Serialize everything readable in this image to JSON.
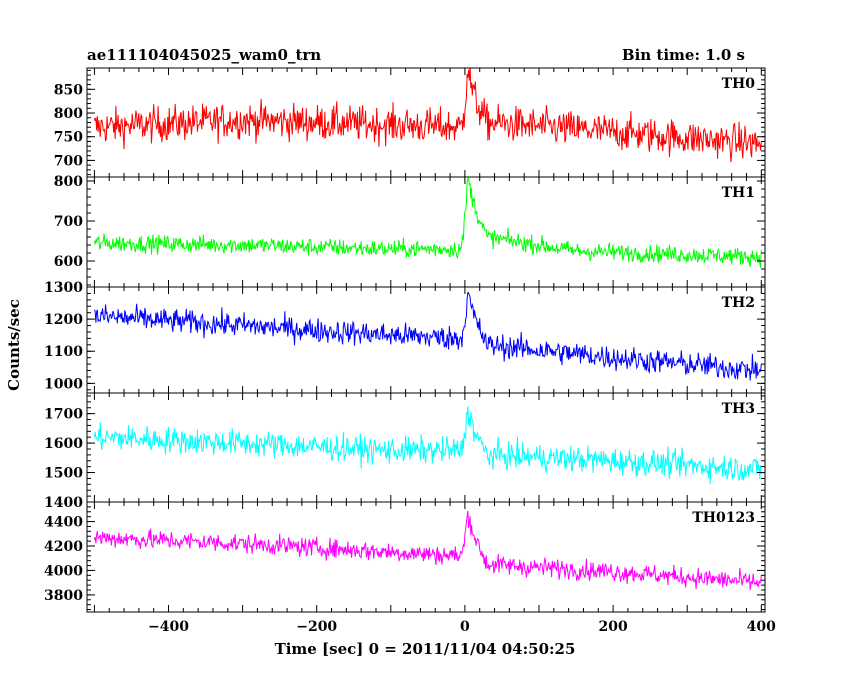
{
  "chart_data": {
    "type": "line",
    "title": "ae111104045025_wam0_trn",
    "bin_time_label": "Bin time: 1.0 s",
    "xlabel": "Time [sec] 0 = 2011/11/04 04:50:25",
    "ylabel": "Counts/sec",
    "xlim": [
      -510,
      405
    ],
    "x_ticks": [
      -400,
      -200,
      0,
      200,
      400
    ],
    "panels": [
      {
        "name": "TH0",
        "color": "#ff0000",
        "ylim": [
          665,
          895
        ],
        "y_ticks": [
          700,
          750,
          800,
          850
        ],
        "trend": [
          [
            -500,
            770
          ],
          [
            -300,
            785
          ],
          [
            -100,
            775
          ],
          [
            -5,
            770
          ],
          [
            5,
            840
          ],
          [
            30,
            780
          ],
          [
            200,
            760
          ],
          [
            400,
            735
          ]
        ],
        "noise": 38,
        "spike": {
          "x": 3,
          "amp": 70
        }
      },
      {
        "name": "TH1",
        "color": "#00ff00",
        "ylim": [
          535,
          810
        ],
        "y_ticks": [
          600,
          700,
          800
        ],
        "trend": [
          [
            -500,
            645
          ],
          [
            -300,
            640
          ],
          [
            -100,
            630
          ],
          [
            -5,
            630
          ],
          [
            5,
            760
          ],
          [
            30,
            660
          ],
          [
            150,
            625
          ],
          [
            400,
            610
          ]
        ],
        "noise": 22,
        "spike": {
          "x": 3,
          "amp": 60
        }
      },
      {
        "name": "TH2",
        "color": "#0000ff",
        "ylim": [
          970,
          1300
        ],
        "y_ticks": [
          1000,
          1100,
          1200,
          1300
        ],
        "trend": [
          [
            -500,
            1210
          ],
          [
            -300,
            1180
          ],
          [
            -100,
            1150
          ],
          [
            -5,
            1140
          ],
          [
            5,
            1230
          ],
          [
            30,
            1120
          ],
          [
            200,
            1080
          ],
          [
            400,
            1040
          ]
        ],
        "noise": 38,
        "spike": {
          "x": 3,
          "amp": 60
        }
      },
      {
        "name": "TH3",
        "color": "#00ffff",
        "ylim": [
          1400,
          1770
        ],
        "y_ticks": [
          1400,
          1500,
          1600,
          1700
        ],
        "trend": [
          [
            -500,
            1620
          ],
          [
            -300,
            1600
          ],
          [
            -100,
            1575
          ],
          [
            -5,
            1575
          ],
          [
            5,
            1660
          ],
          [
            30,
            1560
          ],
          [
            200,
            1540
          ],
          [
            400,
            1510
          ]
        ],
        "noise": 45,
        "spike": {
          "x": 3,
          "amp": 70
        }
      },
      {
        "name": "TH0123",
        "color": "#ff00ff",
        "ylim": [
          3660,
          4560
        ],
        "y_ticks": [
          3800,
          4000,
          4200,
          4400
        ],
        "trend": [
          [
            -500,
            4270
          ],
          [
            -300,
            4220
          ],
          [
            -100,
            4150
          ],
          [
            -5,
            4120
          ],
          [
            5,
            4350
          ],
          [
            30,
            4050
          ],
          [
            200,
            3990
          ],
          [
            400,
            3900
          ]
        ],
        "noise": 80,
        "spike": {
          "x": 3,
          "amp": 150
        }
      }
    ]
  }
}
